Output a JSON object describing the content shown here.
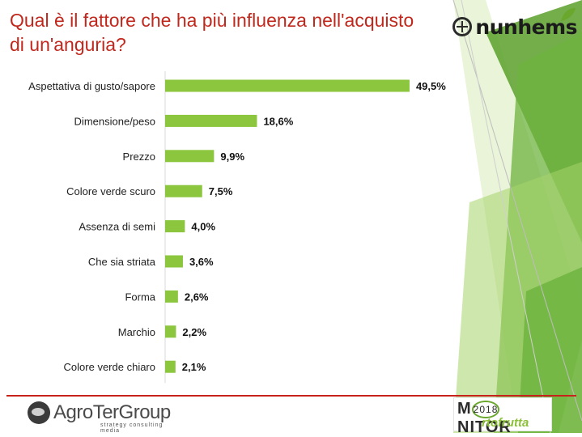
{
  "title": "Qual è il fattore che ha più influenza nell'acquisto di un'anguria?",
  "brand_top": {
    "name": "nunhems"
  },
  "brand_left": {
    "name": "AgroTerGroup",
    "tagline": "strategy consulting media"
  },
  "brand_right": {
    "line1_a": "M",
    "year": "2018",
    "line1_b": "NITOR",
    "line2": "rtofrutta"
  },
  "colors": {
    "bar": "#8cc63f",
    "title": "#c0281d",
    "rule": "#c8221c"
  },
  "chart_data": {
    "type": "bar",
    "orientation": "horizontal",
    "categories": [
      "Aspettativa di gusto/sapore",
      "Dimensione/peso",
      "Prezzo",
      "Colore verde scuro",
      "Assenza di semi",
      "Che sia striata",
      "Forma",
      "Marchio",
      "Colore verde chiaro"
    ],
    "values": [
      49.5,
      18.6,
      9.9,
      7.5,
      4.0,
      3.6,
      2.6,
      2.2,
      2.1
    ],
    "data_labels": [
      "49,5%",
      "18,6%",
      "9,9%",
      "7,5%",
      "4,0%",
      "3,6%",
      "2,6%",
      "2,2%",
      "2,1%"
    ],
    "title": "Qual è il fattore che ha più influenza nell'acquisto di un'anguria?",
    "xlabel": "",
    "ylabel": "",
    "xlim": [
      0,
      100
    ],
    "grid": false,
    "legend": "none"
  }
}
